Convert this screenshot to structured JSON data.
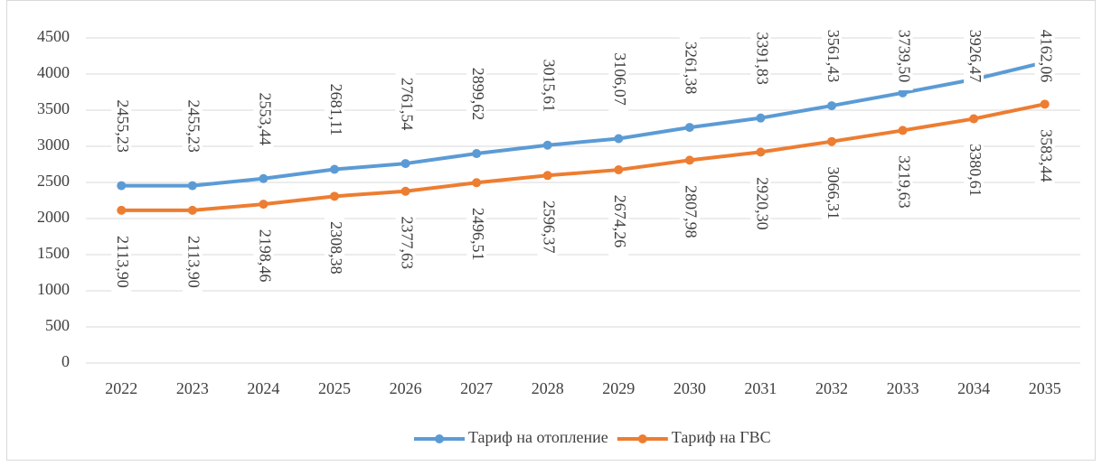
{
  "chart_data": {
    "type": "line",
    "categories": [
      "2022",
      "2023",
      "2024",
      "2025",
      "2026",
      "2027",
      "2028",
      "2029",
      "2030",
      "2031",
      "2032",
      "2033",
      "2034",
      "2035"
    ],
    "series": [
      {
        "name": "Тариф на отопление",
        "color": "#5b9bd5",
        "values": [
          2455.23,
          2455.23,
          2553.44,
          2681.11,
          2761.54,
          2899.62,
          3015.61,
          3106.07,
          3261.38,
          3391.83,
          3561.43,
          3739.5,
          3926.47,
          4162.06
        ],
        "value_labels": [
          "2455,23",
          "2455,23",
          "2553,44",
          "2681,11",
          "2761,54",
          "2899,62",
          "3015,61",
          "3106,07",
          "3261,38",
          "3391,83",
          "3561,43",
          "3739,50",
          "3926,47",
          "4162,06"
        ]
      },
      {
        "name": "Тариф на ГВС",
        "color": "#ed7d31",
        "values": [
          2113.9,
          2113.9,
          2198.46,
          2308.38,
          2377.63,
          2496.51,
          2596.37,
          2674.26,
          2807.98,
          2920.3,
          3066.31,
          3219.63,
          3380.61,
          3583.44
        ],
        "value_labels": [
          "2113,90",
          "2113,90",
          "2198,46",
          "2308,38",
          "2377,63",
          "2496,51",
          "2596,37",
          "2674,26",
          "2807,98",
          "2920,30",
          "3066,31",
          "3219,63",
          "3380,61",
          "3583,44"
        ]
      }
    ],
    "ylim": [
      0,
      4500
    ],
    "yticks": [
      0,
      500,
      1000,
      1500,
      2000,
      2500,
      3000,
      3500,
      4000,
      4500
    ],
    "grid": true,
    "legend": "bottom"
  }
}
